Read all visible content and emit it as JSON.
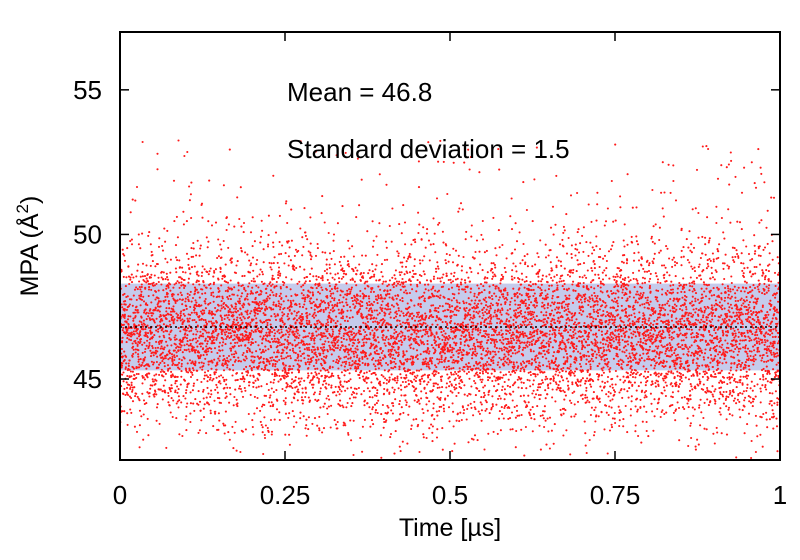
{
  "chart_data": {
    "type": "scatter",
    "title": "",
    "xlabel": "Time [µs]",
    "ylabel_main": "MPA (Å",
    "ylabel_sup": "2",
    "ylabel_end": ")",
    "xlim": [
      0,
      1
    ],
    "ylim": [
      42.2,
      57
    ],
    "x_ticks": [
      0,
      0.25,
      0.5,
      0.75,
      1
    ],
    "x_tick_labels": [
      "0",
      "0.25",
      "0.5",
      "0.75",
      "1"
    ],
    "y_ticks": [
      45,
      50,
      55
    ],
    "y_tick_labels": [
      "45",
      "50",
      "55"
    ],
    "grid": false,
    "mean": 46.8,
    "std": 1.5,
    "band": [
      45.3,
      48.3
    ],
    "n_points_approx": 9000,
    "annotations": {
      "mean": "Mean = 46.8",
      "std": "Standard deviation = 1.5"
    },
    "colors": {
      "points": "#ff1a1a",
      "band": "#c5cbec",
      "mean_line": "#000000",
      "axes": "#000000"
    }
  }
}
